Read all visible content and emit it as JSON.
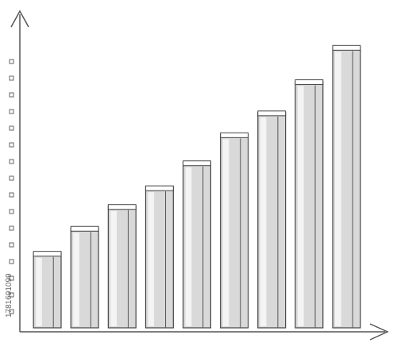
{
  "chart_data": {
    "type": "bar",
    "values": [
      24,
      32,
      39,
      45,
      53,
      62,
      69,
      79,
      90
    ],
    "color": "#d9d9d9",
    "ylim": [
      0,
      100
    ]
  },
  "watermark": "1781691099"
}
